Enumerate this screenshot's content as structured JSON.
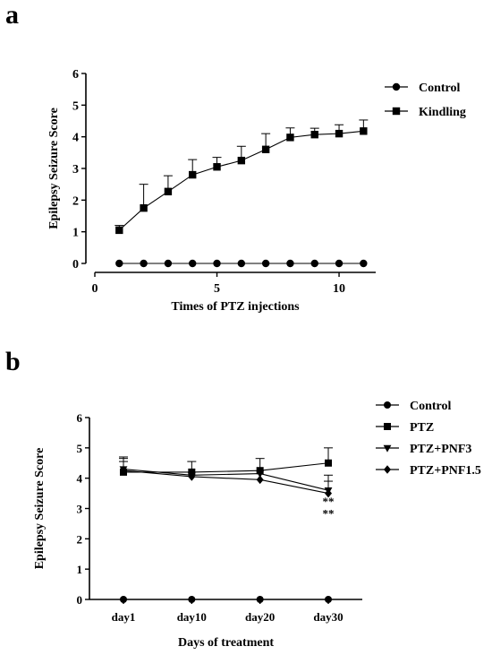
{
  "chart_data": [
    {
      "panel": "a",
      "type": "line",
      "title": "",
      "xlabel": "Times of PTZ injections",
      "ylabel": "Epilepsy Seizure Score",
      "xlim": [
        0,
        11.5
      ],
      "ylim": [
        0,
        6
      ],
      "xticks": [
        0,
        5,
        10
      ],
      "yticks": [
        0,
        1,
        2,
        3,
        4,
        5,
        6
      ],
      "grid": false,
      "legend_position": "top-right",
      "x": [
        1,
        2,
        3,
        4,
        5,
        6,
        7,
        8,
        9,
        10,
        11
      ],
      "series": [
        {
          "name": "Control",
          "marker": "circle",
          "values": [
            0,
            0,
            0,
            0,
            0,
            0,
            0,
            0,
            0,
            0,
            0
          ],
          "error": [
            0,
            0,
            0,
            0,
            0,
            0,
            0,
            0,
            0,
            0,
            0
          ]
        },
        {
          "name": "Kindling",
          "marker": "square",
          "values": [
            1.05,
            1.75,
            2.27,
            2.8,
            3.05,
            3.25,
            3.6,
            3.98,
            4.07,
            4.1,
            4.18
          ],
          "error": [
            0.15,
            0.75,
            0.5,
            0.48,
            0.3,
            0.45,
            0.5,
            0.3,
            0.2,
            0.28,
            0.35
          ]
        }
      ]
    },
    {
      "panel": "b",
      "type": "line",
      "title": "",
      "xlabel": "Days of treatment",
      "ylabel": "Epilepsy Seizure Score",
      "ylim": [
        0,
        6
      ],
      "yticks": [
        0,
        1,
        2,
        3,
        4,
        5,
        6
      ],
      "grid": false,
      "legend_position": "top-right",
      "categories": [
        "day1",
        "day10",
        "day20",
        "day30"
      ],
      "series": [
        {
          "name": "Control",
          "marker": "circle",
          "values": [
            0,
            0,
            0,
            0
          ],
          "error": [
            0,
            0,
            0,
            0
          ]
        },
        {
          "name": "PTZ",
          "marker": "square",
          "values": [
            4.2,
            4.2,
            4.25,
            4.5
          ],
          "error": [
            0.45,
            0.35,
            0.4,
            0.5
          ]
        },
        {
          "name": "PTZ+PNF3",
          "marker": "triangle-down",
          "values": [
            4.3,
            4.1,
            4.15,
            3.6
          ],
          "error": [
            0.4,
            0.0,
            0.0,
            0.5
          ]
        },
        {
          "name": "PTZ+PNF1.5",
          "marker": "diamond",
          "values": [
            4.25,
            4.05,
            3.95,
            3.5
          ],
          "error": [
            0.3,
            0.0,
            0.0,
            0.4
          ]
        }
      ],
      "annotations": [
        {
          "category": "day30",
          "y": 3.1,
          "text": "**"
        },
        {
          "category": "day30",
          "y": 2.7,
          "text": "**"
        }
      ]
    }
  ]
}
